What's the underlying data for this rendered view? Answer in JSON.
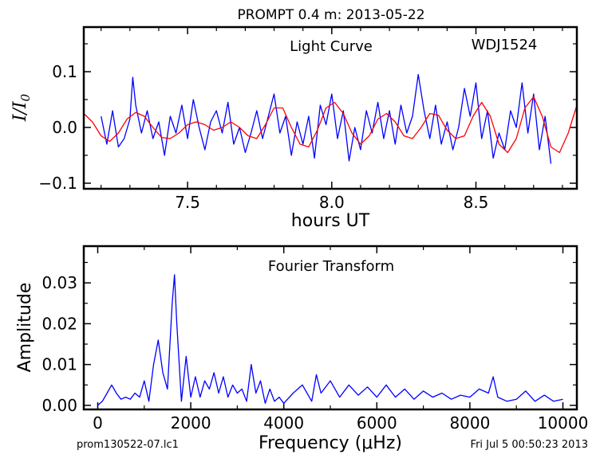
{
  "page": {
    "title": "PROMPT 0.4 m:  2013-05-22",
    "footer_left": "prom130522-07.lc1",
    "footer_right": "Fri Jul  5 00:50:23 2013"
  },
  "chart_data": [
    {
      "type": "line",
      "annotations": [
        "Light Curve",
        "WDJ1524"
      ],
      "xlabel": "hours UT",
      "ylabel": "I/I0",
      "xlim": [
        7.14,
        8.85
      ],
      "ylim": [
        -0.11,
        0.18
      ],
      "xticks": [
        7.5,
        8.0,
        8.5
      ],
      "xtick_labels": [
        "7.5",
        "8.0",
        "8.5"
      ],
      "yticks": [
        -0.1,
        0.0,
        0.1
      ],
      "ytick_labels": [
        "−0.1",
        "0.0",
        "0.1"
      ],
      "grid": false,
      "series": [
        {
          "color": "#0000ff",
          "x": [
            7.2,
            7.22,
            7.24,
            7.26,
            7.28,
            7.3,
            7.31,
            7.32,
            7.34,
            7.36,
            7.38,
            7.4,
            7.42,
            7.44,
            7.46,
            7.48,
            7.5,
            7.52,
            7.54,
            7.56,
            7.58,
            7.6,
            7.62,
            7.64,
            7.66,
            7.68,
            7.7,
            7.72,
            7.74,
            7.76,
            7.78,
            7.8,
            7.82,
            7.84,
            7.86,
            7.88,
            7.9,
            7.92,
            7.94,
            7.96,
            7.98,
            8.0,
            8.02,
            8.04,
            8.06,
            8.08,
            8.1,
            8.12,
            8.14,
            8.16,
            8.18,
            8.2,
            8.22,
            8.24,
            8.26,
            8.28,
            8.3,
            8.32,
            8.34,
            8.36,
            8.38,
            8.4,
            8.42,
            8.44,
            8.46,
            8.48,
            8.5,
            8.52,
            8.54,
            8.56,
            8.58,
            8.6,
            8.62,
            8.64,
            8.66,
            8.68,
            8.7,
            8.72,
            8.74,
            8.76
          ],
          "values": [
            0.02,
            -0.03,
            0.03,
            -0.035,
            -0.02,
            0.015,
            0.09,
            0.04,
            -0.01,
            0.03,
            -0.02,
            0.01,
            -0.05,
            0.02,
            -0.01,
            0.04,
            -0.02,
            0.05,
            0.0,
            -0.04,
            0.01,
            0.03,
            -0.01,
            0.045,
            -0.03,
            0.0,
            -0.045,
            -0.01,
            0.03,
            -0.02,
            0.02,
            0.06,
            -0.01,
            0.02,
            -0.05,
            0.01,
            -0.03,
            0.02,
            -0.055,
            0.04,
            0.005,
            0.06,
            -0.02,
            0.03,
            -0.06,
            0.0,
            -0.04,
            0.03,
            -0.01,
            0.045,
            -0.02,
            0.03,
            -0.03,
            0.04,
            -0.01,
            0.02,
            0.095,
            0.03,
            -0.02,
            0.04,
            -0.03,
            0.01,
            -0.04,
            0.0,
            0.07,
            0.02,
            0.08,
            -0.02,
            0.03,
            -0.055,
            -0.01,
            -0.04,
            0.03,
            0.0,
            0.08,
            -0.01,
            0.06,
            -0.04,
            0.02,
            -0.065
          ]
        },
        {
          "color": "#ff0000",
          "x": [
            7.14,
            7.17,
            7.2,
            7.23,
            7.26,
            7.29,
            7.32,
            7.35,
            7.38,
            7.41,
            7.44,
            7.47,
            7.5,
            7.53,
            7.56,
            7.59,
            7.62,
            7.65,
            7.68,
            7.71,
            7.74,
            7.77,
            7.8,
            7.83,
            7.86,
            7.89,
            7.92,
            7.95,
            7.98,
            8.01,
            8.04,
            8.07,
            8.1,
            8.13,
            8.16,
            8.19,
            8.22,
            8.25,
            8.28,
            8.31,
            8.34,
            8.37,
            8.4,
            8.43,
            8.46,
            8.49,
            8.52,
            8.55,
            8.58,
            8.61,
            8.64,
            8.67,
            8.7,
            8.73,
            8.76,
            8.79,
            8.82,
            8.85
          ],
          "values": [
            0.025,
            0.01,
            -0.015,
            -0.025,
            -0.01,
            0.015,
            0.027,
            0.02,
            0.0,
            -0.018,
            -0.02,
            -0.01,
            0.005,
            0.01,
            0.005,
            -0.005,
            0.0,
            0.01,
            0.0,
            -0.015,
            -0.02,
            0.005,
            0.035,
            0.035,
            0.0,
            -0.03,
            -0.035,
            -0.005,
            0.035,
            0.045,
            0.025,
            -0.01,
            -0.03,
            -0.015,
            0.015,
            0.025,
            0.01,
            -0.015,
            -0.02,
            0.0,
            0.025,
            0.022,
            -0.005,
            -0.02,
            -0.015,
            0.02,
            0.045,
            0.02,
            -0.03,
            -0.045,
            -0.02,
            0.035,
            0.055,
            0.02,
            -0.035,
            -0.045,
            -0.01,
            0.04
          ]
        }
      ]
    },
    {
      "type": "line",
      "annotations": [
        "Fourier Transform"
      ],
      "xlabel": "Frequency (μHz)",
      "ylabel": "Amplitude",
      "xlim": [
        -300,
        10300
      ],
      "ylim": [
        -0.001,
        0.039
      ],
      "xticks": [
        0,
        2000,
        4000,
        6000,
        8000,
        10000
      ],
      "xtick_labels": [
        "0",
        "2000",
        "4000",
        "6000",
        "8000",
        "10000"
      ],
      "yticks": [
        0.0,
        0.01,
        0.02,
        0.03
      ],
      "ytick_labels": [
        "0.00",
        "0.01",
        "0.02",
        "0.03"
      ],
      "grid": false,
      "series": [
        {
          "color": "#0000ff",
          "x": [
            0,
            100,
            200,
            300,
            400,
            500,
            600,
            700,
            800,
            900,
            1000,
            1100,
            1200,
            1300,
            1400,
            1500,
            1600,
            1650,
            1700,
            1800,
            1900,
            2000,
            2100,
            2200,
            2300,
            2400,
            2500,
            2600,
            2700,
            2800,
            2900,
            3000,
            3100,
            3200,
            3300,
            3400,
            3500,
            3600,
            3700,
            3800,
            3900,
            4000,
            4200,
            4400,
            4600,
            4700,
            4800,
            5000,
            5200,
            5400,
            5600,
            5800,
            6000,
            6200,
            6400,
            6600,
            6800,
            7000,
            7200,
            7400,
            7600,
            7800,
            8000,
            8200,
            8400,
            8500,
            8600,
            8800,
            9000,
            9200,
            9400,
            9600,
            9800,
            10000
          ],
          "values": [
            0.0,
            0.001,
            0.003,
            0.005,
            0.003,
            0.0015,
            0.002,
            0.0015,
            0.003,
            0.002,
            0.006,
            0.001,
            0.01,
            0.016,
            0.008,
            0.004,
            0.025,
            0.032,
            0.02,
            0.001,
            0.012,
            0.002,
            0.007,
            0.002,
            0.006,
            0.004,
            0.008,
            0.003,
            0.007,
            0.002,
            0.005,
            0.003,
            0.004,
            0.001,
            0.01,
            0.003,
            0.006,
            0.0005,
            0.004,
            0.001,
            0.002,
            0.0005,
            0.003,
            0.005,
            0.001,
            0.0075,
            0.003,
            0.006,
            0.002,
            0.005,
            0.0025,
            0.0045,
            0.002,
            0.005,
            0.002,
            0.004,
            0.0015,
            0.0035,
            0.002,
            0.003,
            0.0015,
            0.0025,
            0.002,
            0.004,
            0.003,
            0.007,
            0.002,
            0.001,
            0.0015,
            0.0035,
            0.001,
            0.0025,
            0.001,
            0.0015
          ]
        }
      ]
    }
  ]
}
